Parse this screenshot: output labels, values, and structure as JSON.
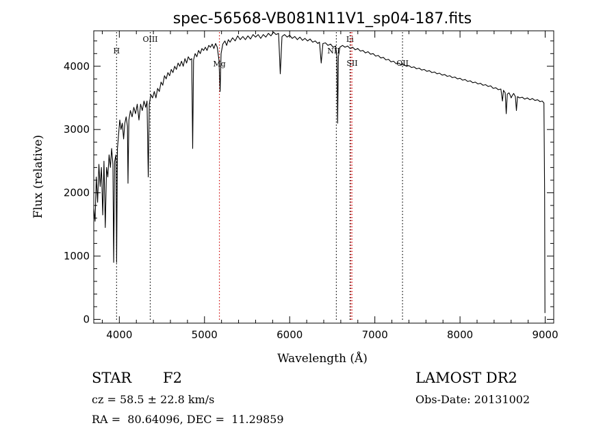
{
  "chart_data": {
    "type": "line",
    "title": "spec-56568-VB081N11V1_sp04-187.fits",
    "xlabel": "Wavelength (Å)",
    "ylabel": "Flux (relative)",
    "xlim": [
      3700,
      9100
    ],
    "ylim": [
      -60,
      4560
    ],
    "x_ticks": [
      4000,
      5000,
      6000,
      7000,
      8000,
      9000
    ],
    "y_ticks": [
      0,
      1000,
      2000,
      3000,
      4000
    ],
    "grid": false,
    "line_color": "#000000",
    "series": [
      {
        "points": [
          [
            3700,
            1750
          ],
          [
            3715,
            1550
          ],
          [
            3730,
            2250
          ],
          [
            3745,
            1850
          ],
          [
            3760,
            2450
          ],
          [
            3775,
            2100
          ],
          [
            3790,
            2400
          ],
          [
            3805,
            1650
          ],
          [
            3820,
            2500
          ],
          [
            3835,
            1450
          ],
          [
            3850,
            2400
          ],
          [
            3865,
            2250
          ],
          [
            3880,
            2600
          ],
          [
            3895,
            2400
          ],
          [
            3910,
            2700
          ],
          [
            3925,
            2450
          ],
          [
            3934,
            900
          ],
          [
            3945,
            2500
          ],
          [
            3960,
            2600
          ],
          [
            3968,
            900
          ],
          [
            3978,
            2700
          ],
          [
            3990,
            2900
          ],
          [
            4005,
            3150
          ],
          [
            4020,
            3000
          ],
          [
            4035,
            3100
          ],
          [
            4050,
            2850
          ],
          [
            4065,
            3100
          ],
          [
            4080,
            3200
          ],
          [
            4095,
            3050
          ],
          [
            4102,
            2150
          ],
          [
            4112,
            3150
          ],
          [
            4130,
            3300
          ],
          [
            4150,
            3200
          ],
          [
            4170,
            3350
          ],
          [
            4190,
            3250
          ],
          [
            4210,
            3400
          ],
          [
            4230,
            3150
          ],
          [
            4250,
            3400
          ],
          [
            4270,
            3300
          ],
          [
            4290,
            3450
          ],
          [
            4310,
            3350
          ],
          [
            4325,
            3450
          ],
          [
            4340,
            2250
          ],
          [
            4352,
            3400
          ],
          [
            4370,
            3550
          ],
          [
            4390,
            3500
          ],
          [
            4410,
            3600
          ],
          [
            4430,
            3500
          ],
          [
            4450,
            3650
          ],
          [
            4470,
            3600
          ],
          [
            4490,
            3750
          ],
          [
            4510,
            3700
          ],
          [
            4530,
            3850
          ],
          [
            4550,
            3800
          ],
          [
            4570,
            3900
          ],
          [
            4590,
            3850
          ],
          [
            4610,
            3950
          ],
          [
            4630,
            3900
          ],
          [
            4650,
            4000
          ],
          [
            4670,
            3950
          ],
          [
            4690,
            4050
          ],
          [
            4710,
            4000
          ],
          [
            4730,
            4080
          ],
          [
            4750,
            4000
          ],
          [
            4770,
            4120
          ],
          [
            4790,
            4050
          ],
          [
            4810,
            4150
          ],
          [
            4830,
            4100
          ],
          [
            4850,
            4120
          ],
          [
            4861,
            2700
          ],
          [
            4872,
            4100
          ],
          [
            4890,
            4200
          ],
          [
            4910,
            4150
          ],
          [
            4930,
            4250
          ],
          [
            4950,
            4200
          ],
          [
            4970,
            4280
          ],
          [
            4990,
            4250
          ],
          [
            5010,
            4300
          ],
          [
            5030,
            4250
          ],
          [
            5050,
            4330
          ],
          [
            5070,
            4300
          ],
          [
            5090,
            4350
          ],
          [
            5110,
            4280
          ],
          [
            5130,
            4360
          ],
          [
            5150,
            4300
          ],
          [
            5170,
            4100
          ],
          [
            5183,
            3600
          ],
          [
            5195,
            4200
          ],
          [
            5215,
            4350
          ],
          [
            5240,
            4400
          ],
          [
            5260,
            4330
          ],
          [
            5280,
            4420
          ],
          [
            5300,
            4380
          ],
          [
            5330,
            4450
          ],
          [
            5360,
            4400
          ],
          [
            5390,
            4480
          ],
          [
            5420,
            4420
          ],
          [
            5450,
            4470
          ],
          [
            5480,
            4420
          ],
          [
            5510,
            4480
          ],
          [
            5540,
            4430
          ],
          [
            5570,
            4500
          ],
          [
            5600,
            4460
          ],
          [
            5630,
            4500
          ],
          [
            5660,
            4440
          ],
          [
            5690,
            4500
          ],
          [
            5720,
            4460
          ],
          [
            5750,
            4520
          ],
          [
            5780,
            4480
          ],
          [
            5810,
            4540
          ],
          [
            5840,
            4500
          ],
          [
            5870,
            4520
          ],
          [
            5890,
            3880
          ],
          [
            5910,
            4470
          ],
          [
            5940,
            4500
          ],
          [
            5970,
            4460
          ],
          [
            6000,
            4490
          ],
          [
            6030,
            4440
          ],
          [
            6060,
            4470
          ],
          [
            6090,
            4420
          ],
          [
            6120,
            4460
          ],
          [
            6150,
            4410
          ],
          [
            6180,
            4440
          ],
          [
            6210,
            4400
          ],
          [
            6240,
            4430
          ],
          [
            6270,
            4380
          ],
          [
            6300,
            4400
          ],
          [
            6330,
            4360
          ],
          [
            6350,
            4380
          ],
          [
            6370,
            4050
          ],
          [
            6390,
            4360
          ],
          [
            6420,
            4370
          ],
          [
            6450,
            4330
          ],
          [
            6480,
            4350
          ],
          [
            6510,
            4300
          ],
          [
            6540,
            4320
          ],
          [
            6555,
            4150
          ],
          [
            6563,
            3100
          ],
          [
            6572,
            4150
          ],
          [
            6590,
            4300
          ],
          [
            6620,
            4330
          ],
          [
            6650,
            4300
          ],
          [
            6680,
            4320
          ],
          [
            6710,
            4280
          ],
          [
            6740,
            4300
          ],
          [
            6770,
            4260
          ],
          [
            6800,
            4280
          ],
          [
            6830,
            4240
          ],
          [
            6860,
            4250
          ],
          [
            6890,
            4210
          ],
          [
            6920,
            4230
          ],
          [
            6950,
            4190
          ],
          [
            6980,
            4200
          ],
          [
            7010,
            4160
          ],
          [
            7040,
            4170
          ],
          [
            7070,
            4130
          ],
          [
            7100,
            4140
          ],
          [
            7130,
            4100
          ],
          [
            7160,
            4110
          ],
          [
            7190,
            4070
          ],
          [
            7220,
            4080
          ],
          [
            7250,
            4040
          ],
          [
            7280,
            4050
          ],
          [
            7310,
            4020
          ],
          [
            7340,
            4030
          ],
          [
            7370,
            4000
          ],
          [
            7400,
            4010
          ],
          [
            7430,
            3980
          ],
          [
            7460,
            3990
          ],
          [
            7490,
            3960
          ],
          [
            7520,
            3970
          ],
          [
            7550,
            3940
          ],
          [
            7580,
            3950
          ],
          [
            7610,
            3920
          ],
          [
            7640,
            3930
          ],
          [
            7670,
            3900
          ],
          [
            7700,
            3910
          ],
          [
            7730,
            3880
          ],
          [
            7760,
            3890
          ],
          [
            7790,
            3860
          ],
          [
            7820,
            3870
          ],
          [
            7850,
            3840
          ],
          [
            7880,
            3850
          ],
          [
            7910,
            3820
          ],
          [
            7940,
            3830
          ],
          [
            7970,
            3800
          ],
          [
            8000,
            3810
          ],
          [
            8030,
            3780
          ],
          [
            8060,
            3790
          ],
          [
            8090,
            3760
          ],
          [
            8120,
            3770
          ],
          [
            8150,
            3740
          ],
          [
            8180,
            3750
          ],
          [
            8210,
            3720
          ],
          [
            8240,
            3730
          ],
          [
            8270,
            3700
          ],
          [
            8300,
            3710
          ],
          [
            8330,
            3680
          ],
          [
            8360,
            3690
          ],
          [
            8390,
            3650
          ],
          [
            8420,
            3660
          ],
          [
            8450,
            3630
          ],
          [
            8480,
            3640
          ],
          [
            8498,
            3450
          ],
          [
            8510,
            3620
          ],
          [
            8530,
            3580
          ],
          [
            8542,
            3250
          ],
          [
            8555,
            3560
          ],
          [
            8575,
            3580
          ],
          [
            8590,
            3540
          ],
          [
            8600,
            3500
          ],
          [
            8615,
            3540
          ],
          [
            8630,
            3570
          ],
          [
            8650,
            3520
          ],
          [
            8662,
            3300
          ],
          [
            8675,
            3520
          ],
          [
            8700,
            3500
          ],
          [
            8730,
            3510
          ],
          [
            8760,
            3480
          ],
          [
            8790,
            3500
          ],
          [
            8820,
            3470
          ],
          [
            8850,
            3490
          ],
          [
            8880,
            3460
          ],
          [
            8910,
            3470
          ],
          [
            8940,
            3440
          ],
          [
            8965,
            3450
          ],
          [
            8985,
            3420
          ],
          [
            8993,
            2000
          ],
          [
            8997,
            100
          ]
        ]
      }
    ],
    "lines": [
      {
        "label": "H",
        "x": 3968,
        "color": "#000000"
      },
      {
        "label": "OIII",
        "x": 4363,
        "color": "#000000"
      },
      {
        "label": "Mg",
        "x": 5175,
        "color": "#cc0000"
      },
      {
        "label": "Li",
        "x": 6708,
        "color": "#000000"
      },
      {
        "label": "NII",
        "x": 6548,
        "color": "#000000"
      },
      {
        "label": "SII",
        "x": 6717,
        "color": "#cc0000"
      },
      {
        "label": "SII",
        "x": 6731,
        "color": "#cc0000"
      },
      {
        "label": "OII",
        "x": 7325,
        "color": "#000000"
      }
    ]
  },
  "info": {
    "object_class": "STAR",
    "subclass": "F2",
    "survey": "LAMOST DR2",
    "cz": "cz = 58.5 ± 22.8 km/s",
    "obs_date": "Obs-Date: 20131002",
    "coords": "RA =  80.64096, DEC =  11.29859"
  }
}
